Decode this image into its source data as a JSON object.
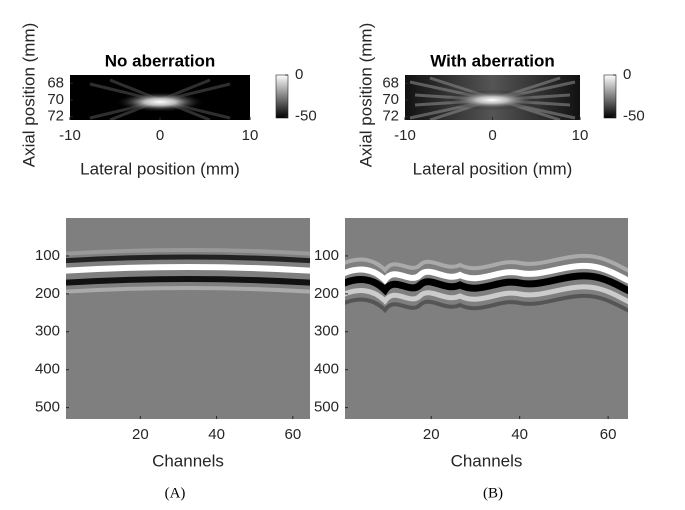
{
  "chart_data": [
    {
      "type": "heatmap",
      "title": "No aberration",
      "xlabel": "Lateral position (mm)",
      "ylabel": "Axial position (mm)",
      "xlim": [
        -10,
        10
      ],
      "xticks": [
        -10,
        0,
        10
      ],
      "ylim": [
        67,
        72.4
      ],
      "yticks": [
        68,
        70,
        72
      ],
      "y_reversed": true,
      "colorbar": true,
      "clim": [
        -52,
        0
      ],
      "cticks": [
        0,
        -50
      ]
    },
    {
      "type": "heatmap",
      "title": "With aberration",
      "xlabel": "Lateral position (mm)",
      "ylabel": "Axial position (mm)",
      "xlim": [
        -10,
        10
      ],
      "xticks": [
        -10,
        0,
        10
      ],
      "ylim": [
        67,
        72.4
      ],
      "yticks": [
        68,
        70,
        72
      ],
      "y_reversed": true,
      "colorbar": true,
      "clim": [
        -52,
        0
      ],
      "cticks": [
        0,
        -50
      ]
    },
    {
      "type": "heatmap",
      "xlabel": "Channels",
      "xlim": [
        0.5,
        64.5
      ],
      "xticks": [
        20,
        40,
        60
      ],
      "ylim": [
        0,
        530
      ],
      "yticks": [
        100,
        200,
        300,
        400,
        500
      ],
      "y_reversed": true
    },
    {
      "type": "heatmap",
      "xlabel": "Channels",
      "xlim": [
        0.5,
        64.5
      ],
      "xticks": [
        20,
        40,
        60
      ],
      "ylim": [
        0,
        530
      ],
      "yticks": [
        100,
        200,
        300,
        400,
        500
      ],
      "y_reversed": true
    }
  ],
  "captions": [
    "(A)",
    "(B)"
  ]
}
